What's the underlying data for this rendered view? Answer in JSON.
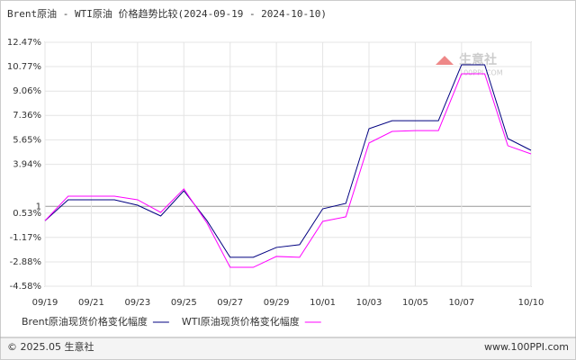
{
  "chart_data": {
    "type": "line",
    "title": "Brent原油 - WTI原油 价格趋势比较(2024-09-19 - 2024-10-10)",
    "categories": [
      "09/19",
      null,
      "09/21",
      null,
      "09/23",
      null,
      "09/25",
      null,
      "09/27",
      null,
      "09/29",
      null,
      "10/01",
      null,
      "10/03",
      null,
      "10/05",
      null,
      "10/07",
      null,
      null,
      "10/10"
    ],
    "series": [
      {
        "name": "Brent原油现货价格变化幅度",
        "color": "#000080",
        "values": [
          0,
          1.46,
          1.46,
          1.46,
          1.08,
          0.33,
          2.09,
          0,
          -2.56,
          -2.56,
          -1.87,
          -1.68,
          0.83,
          1.21,
          6.43,
          6.99,
          6.99,
          6.99,
          10.9,
          10.9,
          5.74,
          4.92
        ]
      },
      {
        "name": "WTI原油现货价格变化幅度",
        "color": "#ff00ff",
        "values": [
          0,
          1.71,
          1.71,
          1.71,
          1.46,
          0.58,
          2.22,
          -0.17,
          -3.26,
          -3.26,
          -2.5,
          -2.56,
          -0.05,
          0.27,
          5.43,
          6.24,
          6.3,
          6.3,
          10.27,
          10.27,
          5.24,
          4.67
        ]
      }
    ],
    "ylim": [
      -4.58,
      12.47
    ],
    "yticks": [
      {
        "value": -4.58,
        "label": "-4.58%"
      },
      {
        "value": -2.88,
        "label": "-2.88%"
      },
      {
        "value": -1.17,
        "label": "-1.17%"
      },
      {
        "value": 0.53,
        "label": "0.53%"
      },
      1,
      {
        "value": 3.94,
        "label": "3.94%"
      },
      {
        "value": 5.65,
        "label": "5.65%"
      },
      {
        "value": 7.36,
        "label": "7.36%"
      },
      {
        "value": 9.06,
        "label": "9.06%"
      },
      {
        "value": 10.77,
        "label": "10.77%"
      },
      {
        "value": 12.47,
        "label": "12.47%"
      }
    ],
    "watermark": "生意社",
    "watermark_url": "100PPI.COM",
    "footer_left": "© 2025.05 生意社",
    "footer_right": "www.100PPI.com"
  }
}
